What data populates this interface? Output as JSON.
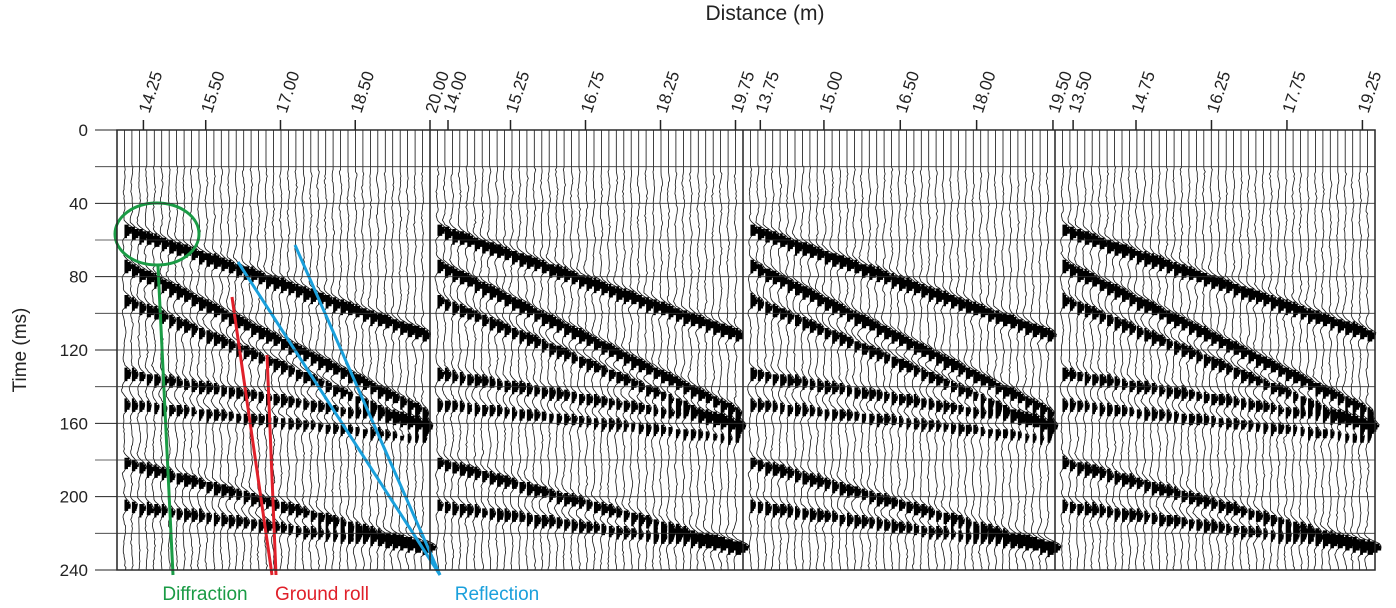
{
  "title": "Distance (m)",
  "y_axis": {
    "label": "Time  (ms)",
    "lim": [
      0,
      240
    ],
    "ticks": [
      0,
      40,
      80,
      120,
      160,
      200,
      240
    ]
  },
  "x_axis": {
    "panels": [
      {
        "lim": [
          13.72,
          20.0
        ],
        "ticks": [
          14.25,
          {
            "value": 15.5,
            "label": "15.50"
          },
          {
            "value": 17,
            "label": "17.00"
          },
          {
            "value": 18.5,
            "label": "18.50"
          },
          {
            "value": 20,
            "label": "20.00"
          }
        ]
      },
      {
        "lim": [
          13.64,
          19.9
        ],
        "ticks": [
          {
            "value": 14,
            "label": "14.00"
          },
          15.25,
          16.75,
          18.25,
          19.75
        ]
      },
      {
        "lim": [
          13.41,
          19.54
        ],
        "ticks": [
          13.75,
          {
            "value": 15,
            "label": "15.00"
          },
          {
            "value": 16.5,
            "label": "16.50"
          },
          {
            "value": 18,
            "label": "18.00"
          },
          {
            "value": 19.5,
            "label": "19.50"
          }
        ]
      },
      {
        "lim": [
          13.14,
          19.5
        ],
        "ticks": [
          {
            "value": 13.5,
            "label": "13.50"
          },
          14.75,
          16.25,
          17.75,
          19.25
        ]
      }
    ]
  },
  "annotations": [
    "Diffraction",
    "Ground roll",
    "Reflection"
  ]
}
